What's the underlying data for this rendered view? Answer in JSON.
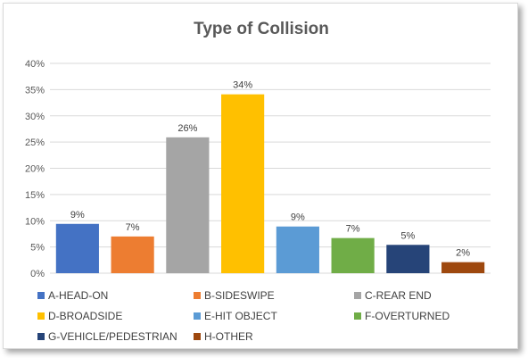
{
  "chart_data": {
    "type": "bar",
    "title": "Type of Collision",
    "xlabel": "",
    "ylabel": "",
    "ylim": [
      0,
      0.4
    ],
    "yticks": [
      "0%",
      "5%",
      "10%",
      "15%",
      "20%",
      "25%",
      "30%",
      "35%",
      "40%"
    ],
    "grid": true,
    "legend_position": "bottom",
    "categories": [
      "A-HEAD-ON",
      "B-SIDESWIPE",
      "C-REAR END",
      "D-BROADSIDE",
      "E-HIT OBJECT",
      "F-OVERTURNED",
      "G-VEHICLE/PEDESTRIAN",
      "H-OTHER"
    ],
    "values": [
      0.094,
      0.07,
      0.259,
      0.341,
      0.089,
      0.067,
      0.054,
      0.021
    ],
    "data_labels": [
      "9%",
      "7%",
      "26%",
      "34%",
      "9%",
      "7%",
      "5%",
      "2%"
    ],
    "colors": [
      "#4472c4",
      "#ed7d31",
      "#a5a5a5",
      "#ffc000",
      "#5b9bd5",
      "#70ad47",
      "#264478",
      "#9e480e"
    ]
  }
}
